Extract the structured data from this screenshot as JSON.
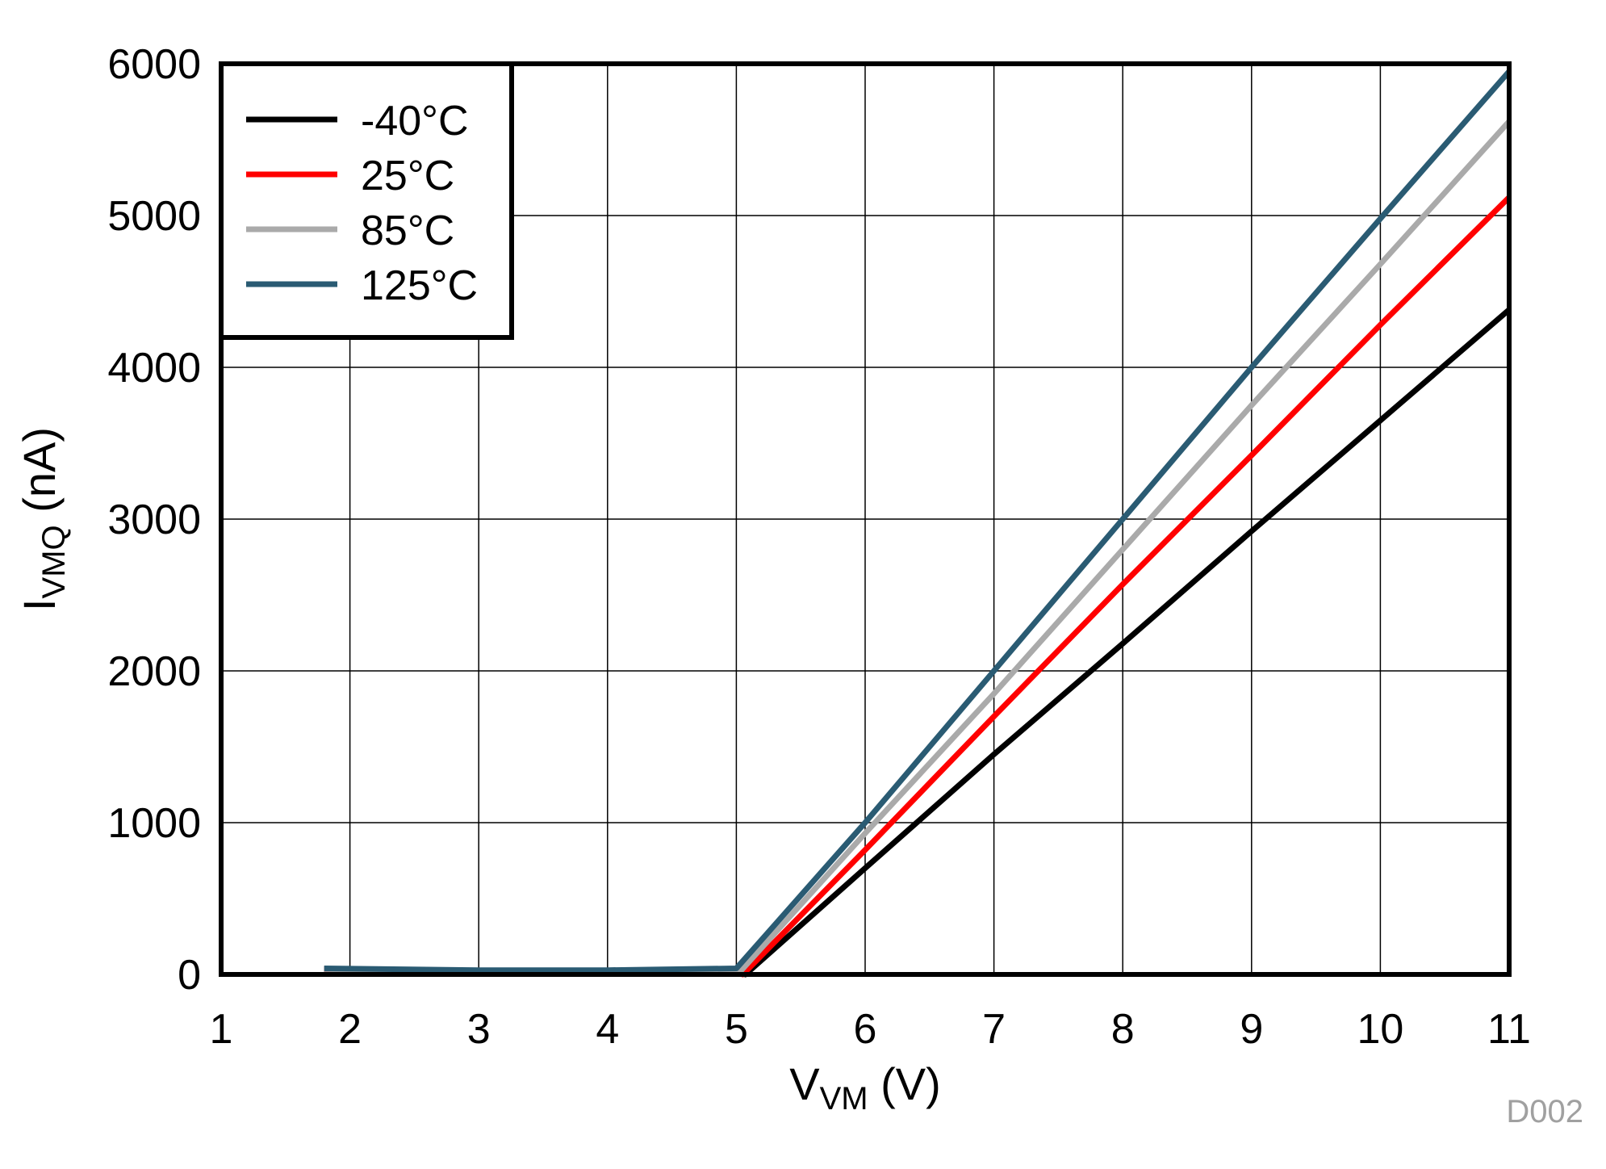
{
  "chart_data": {
    "type": "line",
    "title": "",
    "xlabel": {
      "main": "V",
      "sub": "VM",
      "unit": " (V)"
    },
    "ylabel": {
      "main": "I",
      "sub": "VMQ",
      "unit": " (nA)"
    },
    "xlim": [
      1,
      11
    ],
    "ylim": [
      0,
      6000
    ],
    "xticks": [
      1,
      2,
      3,
      4,
      5,
      6,
      7,
      8,
      9,
      10,
      11
    ],
    "yticks": [
      0,
      1000,
      2000,
      3000,
      4000,
      5000,
      6000
    ],
    "grid": true,
    "legend_position": "top-left",
    "footnote": "D002",
    "series": [
      {
        "name": "-40°C",
        "color": "#000000",
        "points": [
          [
            1.8,
            35
          ],
          [
            3,
            25
          ],
          [
            4,
            25
          ],
          [
            5,
            35
          ],
          [
            5.07,
            0
          ],
          [
            6,
            700
          ],
          [
            7,
            1450
          ],
          [
            8,
            2180
          ],
          [
            9,
            2920
          ],
          [
            10,
            3650
          ],
          [
            11,
            4380
          ]
        ]
      },
      {
        "name": "25°C",
        "color": "#ff0000",
        "points": [
          [
            1.8,
            35
          ],
          [
            3,
            25
          ],
          [
            4,
            25
          ],
          [
            5,
            35
          ],
          [
            5.05,
            0
          ],
          [
            6,
            820
          ],
          [
            7,
            1700
          ],
          [
            8,
            2570
          ],
          [
            9,
            3420
          ],
          [
            10,
            4280
          ],
          [
            11,
            5120
          ]
        ]
      },
      {
        "name": "85°C",
        "color": "#aaaaaa",
        "points": [
          [
            1.8,
            35
          ],
          [
            3,
            25
          ],
          [
            4,
            25
          ],
          [
            5,
            35
          ],
          [
            5.02,
            10
          ],
          [
            6,
            930
          ],
          [
            7,
            1850
          ],
          [
            8,
            2800
          ],
          [
            9,
            3750
          ],
          [
            10,
            4680
          ],
          [
            11,
            5620
          ]
        ]
      },
      {
        "name": "125°C",
        "color": "#2a5b73",
        "points": [
          [
            1.8,
            40
          ],
          [
            3,
            28
          ],
          [
            4,
            28
          ],
          [
            5,
            40
          ],
          [
            6,
            1000
          ],
          [
            7,
            2000
          ],
          [
            8,
            3000
          ],
          [
            9,
            4000
          ],
          [
            10,
            4980
          ],
          [
            11,
            5950
          ]
        ]
      }
    ]
  }
}
